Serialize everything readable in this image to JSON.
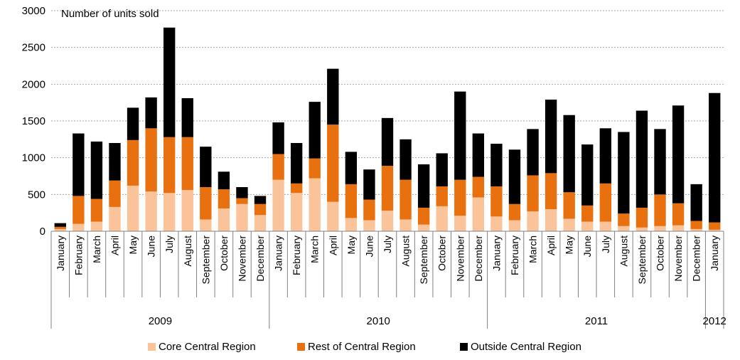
{
  "chart_data": {
    "type": "bar",
    "stacked": true,
    "ylabel": "Number of units sold",
    "ylim": [
      0,
      3000
    ],
    "yticks": [
      0,
      500,
      1000,
      1500,
      2000,
      2500,
      3000
    ],
    "grid": true,
    "legend_position": "bottom",
    "categories": [
      "January",
      "February",
      "March",
      "April",
      "May",
      "June",
      "July",
      "August",
      "September",
      "October",
      "November",
      "December",
      "January",
      "February",
      "March",
      "April",
      "May",
      "June",
      "July",
      "August",
      "September",
      "October",
      "November",
      "December",
      "January",
      "February",
      "March",
      "April",
      "May",
      "June",
      "July",
      "August",
      "September",
      "October",
      "November",
      "December",
      "January"
    ],
    "year_groups": [
      {
        "label": "2009",
        "count": 12
      },
      {
        "label": "2010",
        "count": 12
      },
      {
        "label": "2011",
        "count": 12
      },
      {
        "label": "2012",
        "count": 1
      }
    ],
    "series": [
      {
        "name": "Core Central Region",
        "color": "#fbc399",
        "values": [
          30,
          100,
          130,
          330,
          620,
          540,
          520,
          560,
          160,
          310,
          370,
          220,
          700,
          520,
          720,
          400,
          180,
          150,
          280,
          160,
          90,
          340,
          210,
          460,
          200,
          150,
          270,
          300,
          170,
          130,
          130,
          70,
          50,
          70,
          80,
          30,
          20
        ]
      },
      {
        "name": "Rest of Central Region",
        "color": "#e8700f",
        "values": [
          30,
          380,
          310,
          360,
          620,
          860,
          760,
          720,
          440,
          260,
          80,
          150,
          350,
          130,
          270,
          1050,
          460,
          280,
          610,
          540,
          230,
          270,
          490,
          280,
          410,
          220,
          490,
          490,
          360,
          220,
          520,
          170,
          270,
          430,
          300,
          110,
          100
        ]
      },
      {
        "name": "Outside Central Region",
        "color": "#000000",
        "values": [
          50,
          850,
          780,
          510,
          440,
          420,
          1490,
          530,
          550,
          240,
          150,
          110,
          430,
          550,
          770,
          760,
          440,
          410,
          650,
          550,
          590,
          450,
          1200,
          590,
          580,
          740,
          630,
          1000,
          1050,
          830,
          750,
          1110,
          1320,
          890,
          1330,
          500,
          1760
        ]
      }
    ]
  }
}
